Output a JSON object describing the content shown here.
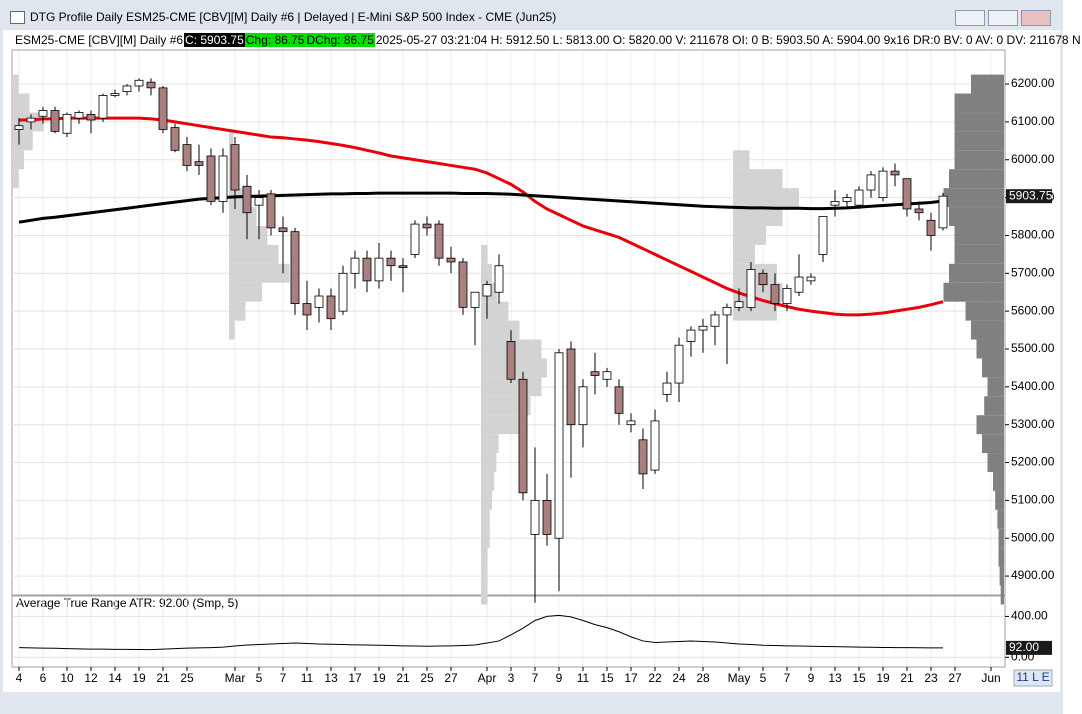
{
  "window_title": "DTG Profile Daily ESM25-CME [CBV][M]  Daily #6 | Delayed | E-Mini S&P 500 Index - CME (Jun25)",
  "info_bar": {
    "symbol": "ESM25-CME [CBV][M]  Daily #6",
    "close": "C: 5903.75",
    "change": "Chg: 86.75",
    "dchange": "DChg: 86.75",
    "details": "2025-05-27 03:21:04 H: 5912.50 L: 5813.00 O: 5820.00 V: 211678 OI: 0 B: 5903.50 A: 5904.00 9x16 DR:0 BV: 0 AV: 0 DV: 211678 N"
  },
  "scroll_corner": "11 L E",
  "chart_data": [
    {
      "type": "candlestick",
      "categories": [
        "4",
        null,
        "6",
        null,
        "10",
        null,
        "12",
        null,
        "14",
        null,
        "19",
        null,
        "21",
        null,
        "25",
        null,
        null,
        null,
        "Mar",
        null,
        "5",
        null,
        "7",
        null,
        "11",
        null,
        "13",
        null,
        "17",
        null,
        "19",
        null,
        "21",
        null,
        "25",
        null,
        "27",
        null,
        null,
        "Apr",
        null,
        "3",
        null,
        "7",
        null,
        "9",
        null,
        "11",
        null,
        "15",
        null,
        "17",
        null,
        "22",
        null,
        "24",
        null,
        "28",
        null,
        null,
        "May",
        null,
        "5",
        null,
        "7",
        null,
        "9",
        null,
        "13",
        null,
        "15",
        null,
        "19",
        null,
        "21",
        null,
        "23",
        null,
        "27",
        null,
        null,
        "Jun"
      ],
      "ohlc": [
        [
          6080,
          6110,
          6040,
          6090
        ],
        [
          6100,
          6120,
          6080,
          6110
        ],
        [
          6115,
          6140,
          6095,
          6130
        ],
        [
          6130,
          6140,
          6070,
          6075
        ],
        [
          6070,
          6125,
          6060,
          6120
        ],
        [
          6110,
          6130,
          6095,
          6125
        ],
        [
          6120,
          6130,
          6070,
          6105
        ],
        [
          6110,
          6175,
          6100,
          6170
        ],
        [
          6170,
          6185,
          6165,
          6175
        ],
        [
          6180,
          6200,
          6170,
          6195
        ],
        [
          6195,
          6215,
          6180,
          6210
        ],
        [
          6205,
          6215,
          6170,
          6190
        ],
        [
          6190,
          6195,
          6070,
          6080
        ],
        [
          6085,
          6095,
          6020,
          6025
        ],
        [
          6040,
          6060,
          5970,
          5985
        ],
        [
          5995,
          6040,
          5960,
          5985
        ],
        [
          6010,
          6030,
          5880,
          5890
        ],
        [
          5890,
          6030,
          5860,
          6010
        ],
        [
          6040,
          6060,
          5870,
          5920
        ],
        [
          5930,
          5960,
          5790,
          5860
        ],
        [
          5880,
          5920,
          5790,
          5900
        ],
        [
          5910,
          5920,
          5800,
          5820
        ],
        [
          5820,
          5850,
          5700,
          5810
        ],
        [
          5810,
          5820,
          5590,
          5620
        ],
        [
          5620,
          5680,
          5550,
          5590
        ],
        [
          5610,
          5660,
          5570,
          5640
        ],
        [
          5640,
          5660,
          5550,
          5580
        ],
        [
          5600,
          5720,
          5590,
          5700
        ],
        [
          5700,
          5760,
          5660,
          5740
        ],
        [
          5740,
          5760,
          5650,
          5680
        ],
        [
          5680,
          5780,
          5660,
          5740
        ],
        [
          5740,
          5760,
          5680,
          5720
        ],
        [
          5720,
          5740,
          5650,
          5715
        ],
        [
          5750,
          5840,
          5740,
          5830
        ],
        [
          5830,
          5850,
          5800,
          5820
        ],
        [
          5830,
          5840,
          5720,
          5740
        ],
        [
          5740,
          5770,
          5700,
          5730
        ],
        [
          5730,
          5740,
          5590,
          5610
        ],
        [
          5610,
          5650,
          5510,
          5650
        ],
        [
          5640,
          5680,
          5580,
          5670
        ],
        [
          5650,
          5750,
          5620,
          5720
        ],
        [
          5520,
          5550,
          5410,
          5420
        ],
        [
          5420,
          5440,
          5100,
          5120
        ],
        [
          5010,
          5240,
          4830,
          5100
        ],
        [
          5100,
          5170,
          4980,
          5010
        ],
        [
          5000,
          5500,
          4860,
          5490
        ],
        [
          5500,
          5520,
          5160,
          5300
        ],
        [
          5300,
          5420,
          5240,
          5400
        ],
        [
          5440,
          5490,
          5380,
          5430
        ],
        [
          5420,
          5450,
          5400,
          5440
        ],
        [
          5400,
          5420,
          5300,
          5330
        ],
        [
          5300,
          5330,
          5280,
          5310
        ],
        [
          5260,
          5290,
          5130,
          5170
        ],
        [
          5180,
          5340,
          5170,
          5310
        ],
        [
          5380,
          5440,
          5360,
          5410
        ],
        [
          5410,
          5530,
          5360,
          5510
        ],
        [
          5520,
          5560,
          5480,
          5550
        ],
        [
          5550,
          5580,
          5490,
          5560
        ],
        [
          5560,
          5600,
          5510,
          5590
        ],
        [
          5590,
          5620,
          5460,
          5610
        ],
        [
          5610,
          5660,
          5600,
          5625
        ],
        [
          5610,
          5730,
          5600,
          5710
        ],
        [
          5700,
          5710,
          5650,
          5670
        ],
        [
          5670,
          5700,
          5600,
          5620
        ],
        [
          5620,
          5670,
          5600,
          5660
        ],
        [
          5650,
          5750,
          5640,
          5690
        ],
        [
          5680,
          5700,
          5670,
          5690
        ],
        [
          5750,
          5850,
          5730,
          5850
        ],
        [
          5880,
          5920,
          5850,
          5890
        ],
        [
          5890,
          5910,
          5870,
          5900
        ],
        [
          5880,
          5930,
          5870,
          5920
        ],
        [
          5920,
          5970,
          5900,
          5960
        ],
        [
          5900,
          5980,
          5890,
          5970
        ],
        [
          5970,
          5990,
          5930,
          5960
        ],
        [
          5950,
          5950,
          5850,
          5870
        ],
        [
          5870,
          5890,
          5840,
          5860
        ],
        [
          5840,
          5860,
          5760,
          5800
        ],
        [
          5820,
          5912.5,
          5813,
          5903.75
        ],
        null,
        null,
        null,
        null
      ],
      "up_color": "#ffffff",
      "down_color": "#a98080",
      "series": [
        {
          "color": "#e8000b",
          "values": [
            6105,
            6105,
            6108,
            6108,
            6110,
            6110,
            6110,
            6110,
            6110,
            6110,
            6110,
            6108,
            6105,
            6100,
            6095,
            6090,
            6085,
            6080,
            6075,
            6070,
            6065,
            6060,
            6058,
            6055,
            6052,
            6048,
            6043,
            6038,
            6032,
            6025,
            6018,
            6010,
            6005,
            6000,
            5995,
            5990,
            5985,
            5980,
            5975,
            5965,
            5950,
            5935,
            5915,
            5890,
            5870,
            5855,
            5840,
            5825,
            5815,
            5805,
            5795,
            5780,
            5765,
            5750,
            5735,
            5720,
            5705,
            5690,
            5675,
            5660,
            5648,
            5638,
            5628,
            5620,
            5612,
            5605,
            5600,
            5596,
            5592,
            5590,
            5590,
            5592,
            5595,
            5600,
            5605,
            5610,
            5617,
            5625,
            null,
            null,
            null,
            null
          ]
        },
        {
          "color": "#000000",
          "values": [
            5835,
            5840,
            5845,
            5848,
            5852,
            5856,
            5860,
            5864,
            5868,
            5872,
            5876,
            5880,
            5884,
            5888,
            5892,
            5896,
            5898,
            5900,
            5902,
            5903,
            5904,
            5905,
            5906,
            5907,
            5908,
            5909,
            5910,
            5910,
            5911,
            5911,
            5912,
            5912,
            5912,
            5912,
            5912,
            5912,
            5912,
            5911,
            5911,
            5911,
            5910,
            5909,
            5907,
            5905,
            5903,
            5901,
            5899,
            5897,
            5895,
            5893,
            5891,
            5889,
            5887,
            5885,
            5883,
            5881,
            5879,
            5877,
            5876,
            5875,
            5874,
            5873,
            5873,
            5872,
            5872,
            5872,
            5871,
            5871,
            5872,
            5873,
            5875,
            5877,
            5879,
            5881,
            5883,
            5885,
            5887,
            5891,
            null,
            null,
            null,
            null
          ]
        }
      ],
      "profiles": [
        {
          "start": 0,
          "color": "#d3d3d3",
          "levels": [
            5950,
            6000,
            6050,
            6100,
            6150,
            6200
          ],
          "volumes": [
            5,
            10,
            18,
            28,
            15,
            5
          ]
        },
        {
          "start": 18,
          "color": "#d3d3d3",
          "levels": [
            5550,
            5600,
            5650,
            5700,
            5750,
            5800,
            5850,
            5900,
            5950,
            6000,
            6050
          ],
          "volumes": [
            5,
            15,
            30,
            55,
            45,
            35,
            25,
            15,
            8,
            5,
            4
          ]
        },
        {
          "start": 39,
          "color": "#d3d3d3",
          "levels": [
            4850,
            4900,
            4950,
            5000,
            5050,
            5100,
            5150,
            5200,
            5250,
            5300,
            5350,
            5400,
            5450,
            5500,
            5550,
            5600,
            5650,
            5700,
            5750
          ],
          "volumes": [
            6,
            6,
            6,
            8,
            8,
            10,
            12,
            14,
            16,
            40,
            45,
            55,
            60,
            55,
            35,
            25,
            15,
            10,
            6
          ]
        },
        {
          "start": 60,
          "color": "#d3d3d3",
          "levels": [
            5600,
            5650,
            5700,
            5750,
            5800,
            5850,
            5900,
            5950,
            6000
          ],
          "volumes": [
            40,
            45,
            40,
            20,
            30,
            45,
            60,
            45,
            15
          ]
        },
        {
          "start": null,
          "color": "#808080",
          "levels": [
            4850,
            4900,
            4950,
            5000,
            5050,
            5100,
            5150,
            5200,
            5250,
            5300,
            5350,
            5400,
            5450,
            5500,
            5550,
            5600,
            5650,
            5700,
            5750,
            5800,
            5850,
            5900,
            5950,
            6000,
            6050,
            6100,
            6150,
            6200
          ],
          "volumes": [
            3,
            4,
            5,
            5,
            6,
            8,
            10,
            15,
            20,
            25,
            18,
            15,
            20,
            25,
            30,
            35,
            55,
            50,
            45,
            45,
            50,
            55,
            50,
            45,
            45,
            45,
            45,
            30
          ]
        }
      ],
      "ylim": [
        4850,
        6290
      ],
      "yticks": [
        {
          "value": 4900,
          "label": "4900.00"
        },
        {
          "value": 5000,
          "label": "5000.00"
        },
        {
          "value": 5100,
          "label": "5100.00"
        },
        {
          "value": 5200,
          "label": "5200.00"
        },
        {
          "value": 5300,
          "label": "5300.00"
        },
        {
          "value": 5400,
          "label": "5400.00"
        },
        {
          "value": 5500,
          "label": "5500.00"
        },
        {
          "value": 5600,
          "label": "5600.00"
        },
        {
          "value": 5700,
          "label": "5700.00"
        },
        {
          "value": 5800,
          "label": "5800.00"
        },
        {
          "value": 5900,
          "label": "5900.00"
        },
        {
          "value": 6000,
          "label": "6000.00"
        },
        {
          "value": 6100,
          "label": "6100.00"
        },
        {
          "value": 6200,
          "label": "6200.00"
        }
      ],
      "last_label": {
        "value": 5903.75,
        "label": "5903.75"
      },
      "grid": true
    },
    {
      "type": "line",
      "title": "Average True Range  ATR: 92.00  (Smp, 5)",
      "color": "#000000",
      "values": [
        95,
        92,
        90,
        88,
        85,
        82,
        80,
        80,
        78,
        78,
        76,
        75,
        80,
        85,
        90,
        92,
        95,
        100,
        110,
        120,
        125,
        130,
        135,
        140,
        135,
        130,
        128,
        125,
        122,
        120,
        118,
        115,
        112,
        110,
        108,
        110,
        112,
        115,
        120,
        140,
        160,
        220,
        285,
        360,
        400,
        410,
        395,
        360,
        320,
        290,
        250,
        200,
        160,
        145,
        150,
        155,
        160,
        155,
        150,
        140,
        130,
        125,
        118,
        115,
        112,
        110,
        108,
        105,
        104,
        102,
        100,
        98,
        96,
        95,
        95,
        93,
        92,
        92,
        null,
        null,
        null,
        null
      ],
      "ylim": [
        -95,
        590
      ],
      "yticks": [
        {
          "value": 0,
          "label": "0.00"
        },
        {
          "value": 400,
          "label": "400.00"
        }
      ],
      "last_label": {
        "value": 92,
        "label": "92.00"
      },
      "grid": true
    }
  ]
}
